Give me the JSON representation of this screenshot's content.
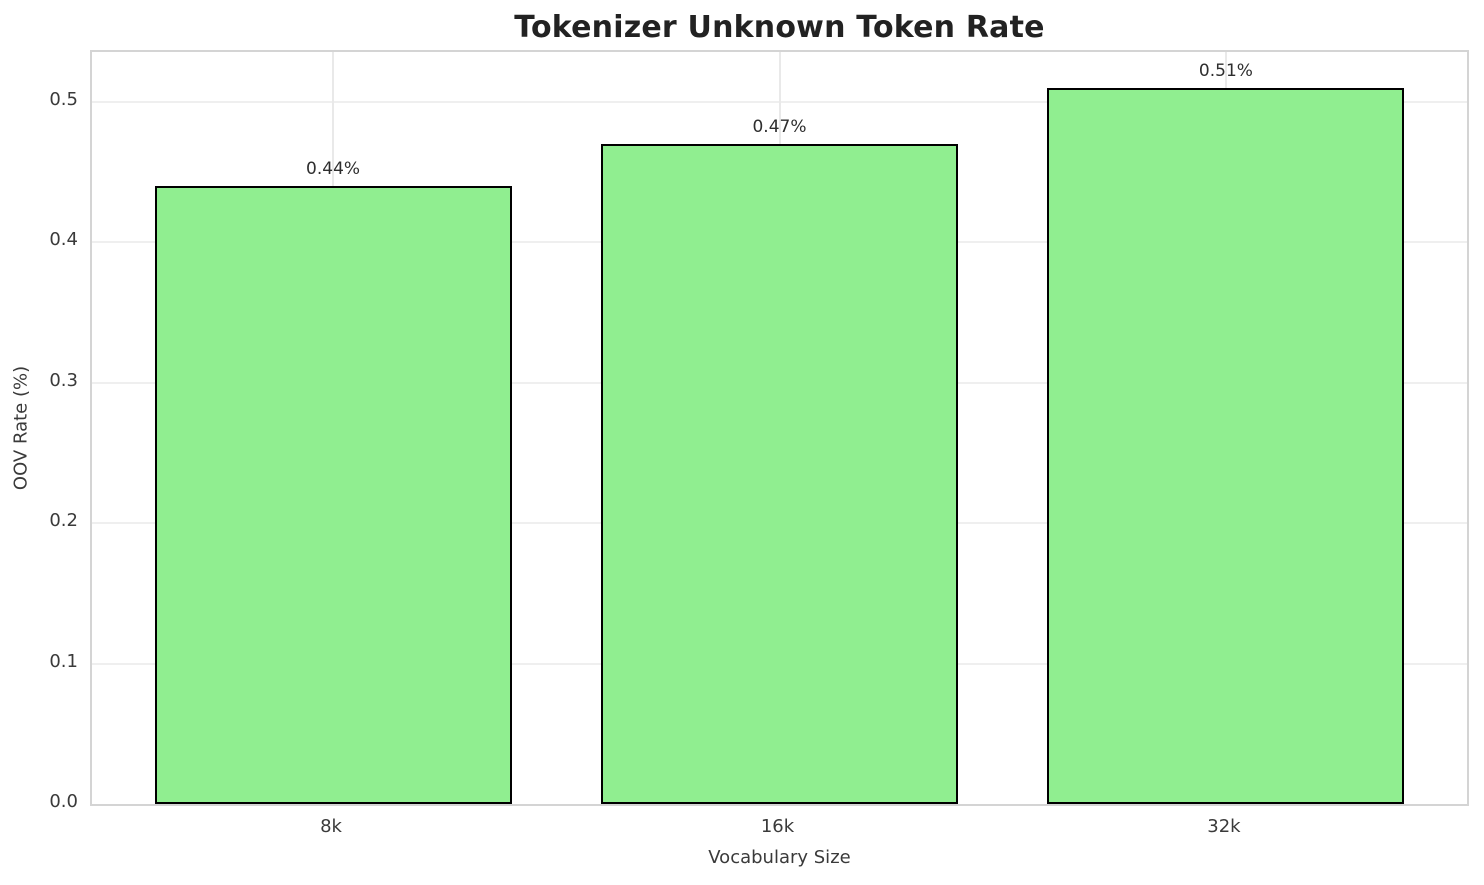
{
  "chart_data": {
    "type": "bar",
    "title": "Tokenizer Unknown Token Rate",
    "xlabel": "Vocabulary Size",
    "ylabel": "OOV Rate (%)",
    "categories": [
      "8k",
      "16k",
      "32k"
    ],
    "values": [
      0.44,
      0.47,
      0.51
    ],
    "bar_labels": [
      "0.44%",
      "0.47%",
      "0.51%"
    ],
    "yticks": [
      0.0,
      0.1,
      0.2,
      0.3,
      0.4,
      0.5
    ],
    "ytick_labels": [
      "0.0",
      "0.1",
      "0.2",
      "0.3",
      "0.4",
      "0.5"
    ],
    "ylim": [
      0,
      0.5355
    ],
    "xlim": [
      -0.54,
      2.54
    ],
    "bar_width": 0.8,
    "grid": true,
    "legend": "none",
    "colors": {
      "bar_fill": "#90EE90",
      "bar_edge": "#000000",
      "grid_line": "#efefef",
      "spine": "#d4d4d4",
      "title_text": "#222222",
      "tick_text": "#3a3a3a",
      "background": "#ffffff"
    }
  }
}
